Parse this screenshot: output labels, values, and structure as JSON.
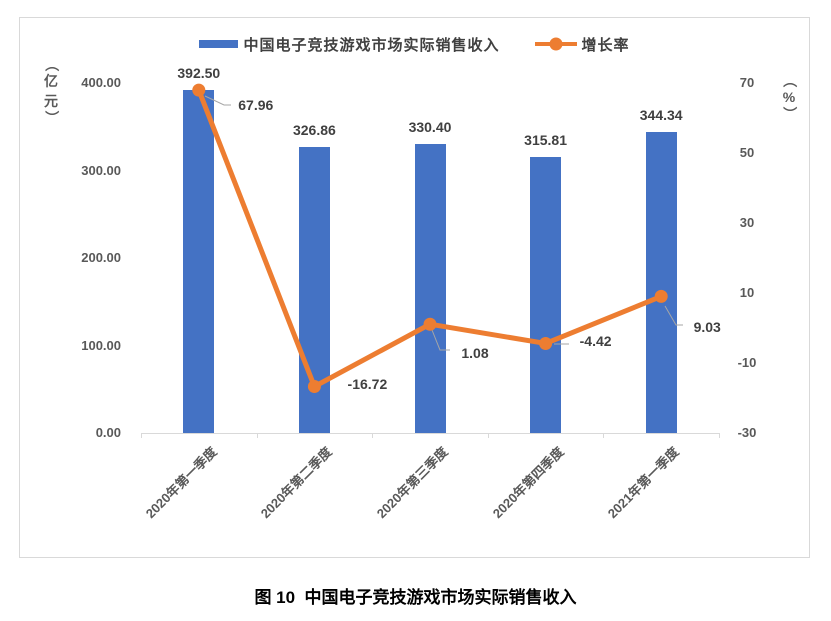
{
  "page": {
    "caption": "图 10  中国电子竞技游戏市场实际销售收入"
  },
  "chart_data": {
    "type": "bar",
    "title": "",
    "categories": [
      "2020年第一季度",
      "2020年第二季度",
      "2020年第三季度",
      "2020年第四季度",
      "2021年第一季度"
    ],
    "series": [
      {
        "name": "中国电子竞技游戏市场实际销售收入",
        "type": "bar",
        "axis": "left",
        "color": "#4472C4",
        "values": [
          392.5,
          326.86,
          330.4,
          315.81,
          344.34
        ],
        "labels": [
          "392.50",
          "326.86",
          "330.40",
          "315.81",
          "344.34"
        ]
      },
      {
        "name": "增长率",
        "type": "line",
        "axis": "right",
        "color": "#ED7D31",
        "values": [
          67.96,
          -16.72,
          1.08,
          -4.42,
          9.03
        ],
        "labels": [
          "67.96",
          "-16.72",
          "1.08",
          "-4.42",
          "9.03"
        ]
      }
    ],
    "left_axis": {
      "title": "（亿元）",
      "min": 0,
      "max": 400,
      "ticks": [
        400,
        300,
        200,
        100,
        0
      ],
      "tick_labels": [
        "400.00",
        "300.00",
        "200.00",
        "100.00",
        "0.00"
      ]
    },
    "right_axis": {
      "title": "（%）",
      "min": -30,
      "max": 70,
      "ticks": [
        70,
        50,
        30,
        10,
        -10,
        -30
      ],
      "tick_labels": [
        "70",
        "50",
        "30",
        "10",
        "-10",
        "-30"
      ]
    },
    "legend_position": "top",
    "grid": false,
    "colors": {
      "bar": "#4472C4",
      "line": "#ED7D31",
      "axis_line": "#d9d9d9",
      "tick_text": "#595959",
      "data_label": "#404040",
      "leader": "#a6a6a6"
    }
  }
}
